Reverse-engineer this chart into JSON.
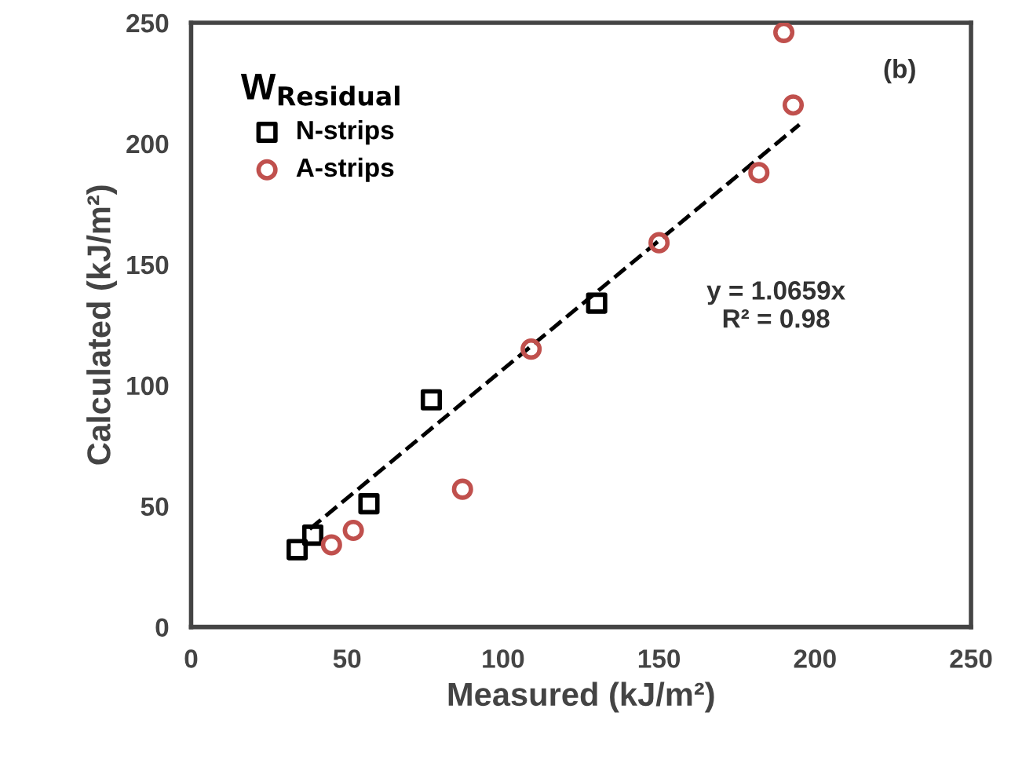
{
  "chart_data": {
    "type": "scatter",
    "xlabel": "Measured (kJ/m²)",
    "ylabel": "Calculated (kJ/m²)",
    "legend_title": "W$_{Residual}$",
    "legend": "top left",
    "grid": false,
    "xlim": [
      0,
      250
    ],
    "xticks": [
      0,
      50,
      100,
      150,
      200,
      250
    ],
    "ylim": [
      0,
      250
    ],
    "yticks": [
      0,
      50,
      100,
      150,
      200,
      250
    ],
    "series": [
      {
        "name": "N-strips",
        "color": "#000000",
        "marker": "square",
        "x": [
          34,
          39,
          57,
          77,
          130
        ],
        "values": [
          32,
          38,
          51,
          94,
          134
        ]
      },
      {
        "name": "A-strips",
        "color": "#c0504d",
        "marker": "circle",
        "x": [
          45,
          52,
          87,
          109,
          150,
          182,
          190,
          193
        ],
        "values": [
          34,
          40,
          57,
          115,
          159,
          188,
          246,
          216
        ]
      },
      {
        "type": "line",
        "color": "#000000",
        "line_style": "dashed",
        "marker": "none",
        "x": [
          38,
          195
        ],
        "values": [
          40.5,
          207.9
        ]
      }
    ],
    "annotations": [
      "(b)",
      "y = 1.0659x\nR² = 0.98"
    ]
  }
}
